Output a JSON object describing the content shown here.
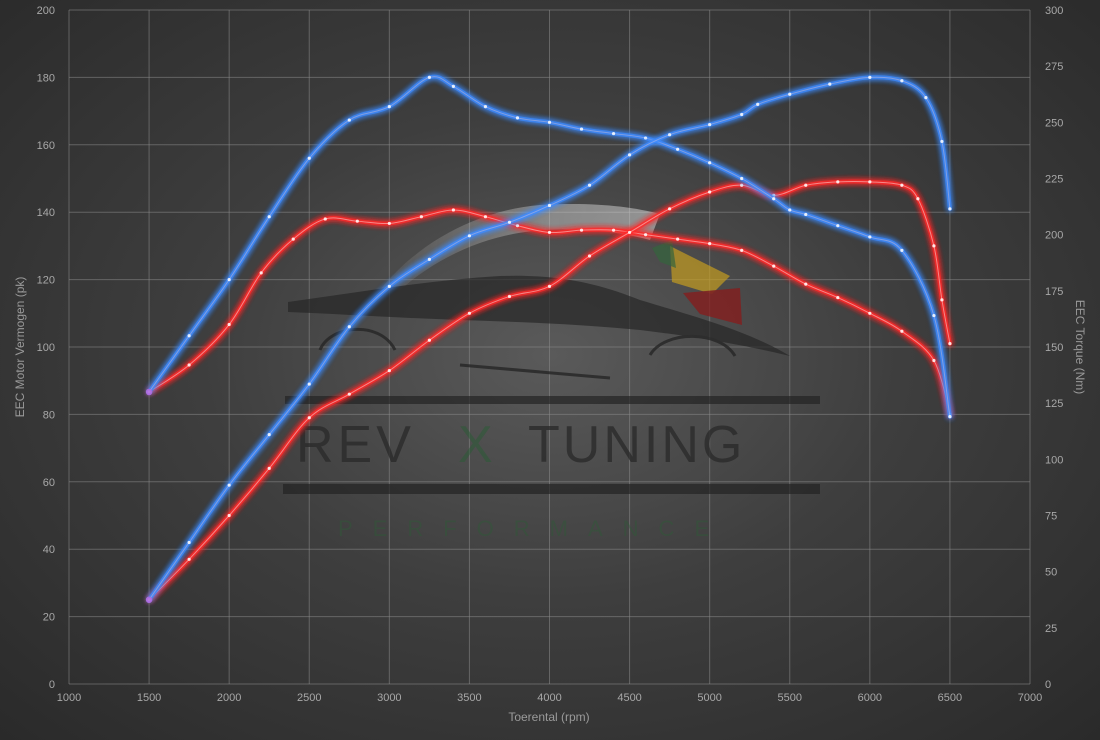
{
  "chart_data": {
    "type": "line",
    "xlabel": "Toerental (rpm)",
    "ylabel_left": "EEC Motor Vermogen (pk)",
    "ylabel_right": "EEC Torque (Nm)",
    "xlim": [
      1000,
      7000
    ],
    "ylim_left": [
      0,
      200
    ],
    "ylim_right": [
      0,
      300
    ],
    "x_ticks": [
      1000,
      1500,
      2000,
      2500,
      3000,
      3500,
      4000,
      4500,
      5000,
      5500,
      6000,
      6500,
      7000
    ],
    "y_left_ticks": [
      0,
      20,
      40,
      60,
      80,
      100,
      120,
      140,
      160,
      180,
      200
    ],
    "y_right_ticks": [
      0,
      25,
      50,
      75,
      100,
      125,
      150,
      175,
      200,
      225,
      250,
      275,
      300
    ],
    "grid": true,
    "series": [
      {
        "axis": "right",
        "color": "#ff2a2a",
        "x": [
          1500,
          1750,
          2000,
          2200,
          2400,
          2600,
          2800,
          3000,
          3200,
          3400,
          3600,
          3800,
          4000,
          4200,
          4400,
          4600,
          4800,
          5000,
          5200,
          5400,
          5600,
          5800,
          6000,
          6200,
          6400,
          6500
        ],
        "y": [
          130,
          142,
          160,
          183,
          198,
          207,
          206,
          205,
          208,
          211,
          208,
          204,
          201,
          202,
          202,
          200,
          198,
          196,
          193,
          186,
          178,
          172,
          165,
          157,
          144,
          120
        ]
      },
      {
        "axis": "left",
        "color": "#ff2a2a",
        "x": [
          1500,
          1750,
          2000,
          2250,
          2500,
          2750,
          3000,
          3250,
          3500,
          3750,
          4000,
          4250,
          4500,
          4750,
          5000,
          5200,
          5400,
          5600,
          5800,
          6000,
          6200,
          6300,
          6400,
          6450,
          6500
        ],
        "y": [
          25,
          37,
          50,
          64,
          79,
          86,
          93,
          102,
          110,
          115,
          118,
          127,
          134,
          141,
          146,
          148,
          145,
          148,
          149,
          149,
          148,
          144,
          130,
          114,
          101
        ]
      },
      {
        "axis": "right",
        "color": "#3d8bff",
        "x": [
          1500,
          1750,
          2000,
          2250,
          2500,
          2750,
          3000,
          3250,
          3400,
          3600,
          3800,
          4000,
          4200,
          4400,
          4600,
          4800,
          5000,
          5200,
          5400,
          5500,
          5600,
          5800,
          6000,
          6200,
          6400,
          6500
        ],
        "y": [
          130,
          155,
          180,
          208,
          234,
          251,
          257,
          270,
          266,
          257,
          252,
          250,
          247,
          245,
          243,
          238,
          232,
          225,
          216,
          211,
          209,
          204,
          199,
          193,
          164,
          119
        ]
      },
      {
        "axis": "left",
        "color": "#3d8bff",
        "x": [
          1500,
          1750,
          2000,
          2250,
          2500,
          2750,
          3000,
          3250,
          3500,
          3750,
          4000,
          4250,
          4500,
          4750,
          5000,
          5200,
          5300,
          5500,
          5750,
          6000,
          6200,
          6350,
          6450,
          6500
        ],
        "y": [
          25,
          42,
          59,
          74,
          89,
          106,
          118,
          126,
          133,
          137,
          142,
          148,
          157,
          163,
          166,
          169,
          172,
          175,
          178,
          180,
          179,
          174,
          161,
          141
        ]
      }
    ]
  },
  "watermark": {
    "word_left": "REV",
    "word_mid": "X",
    "word_right": "TUNING",
    "tagline": "PERFORMANCE"
  }
}
